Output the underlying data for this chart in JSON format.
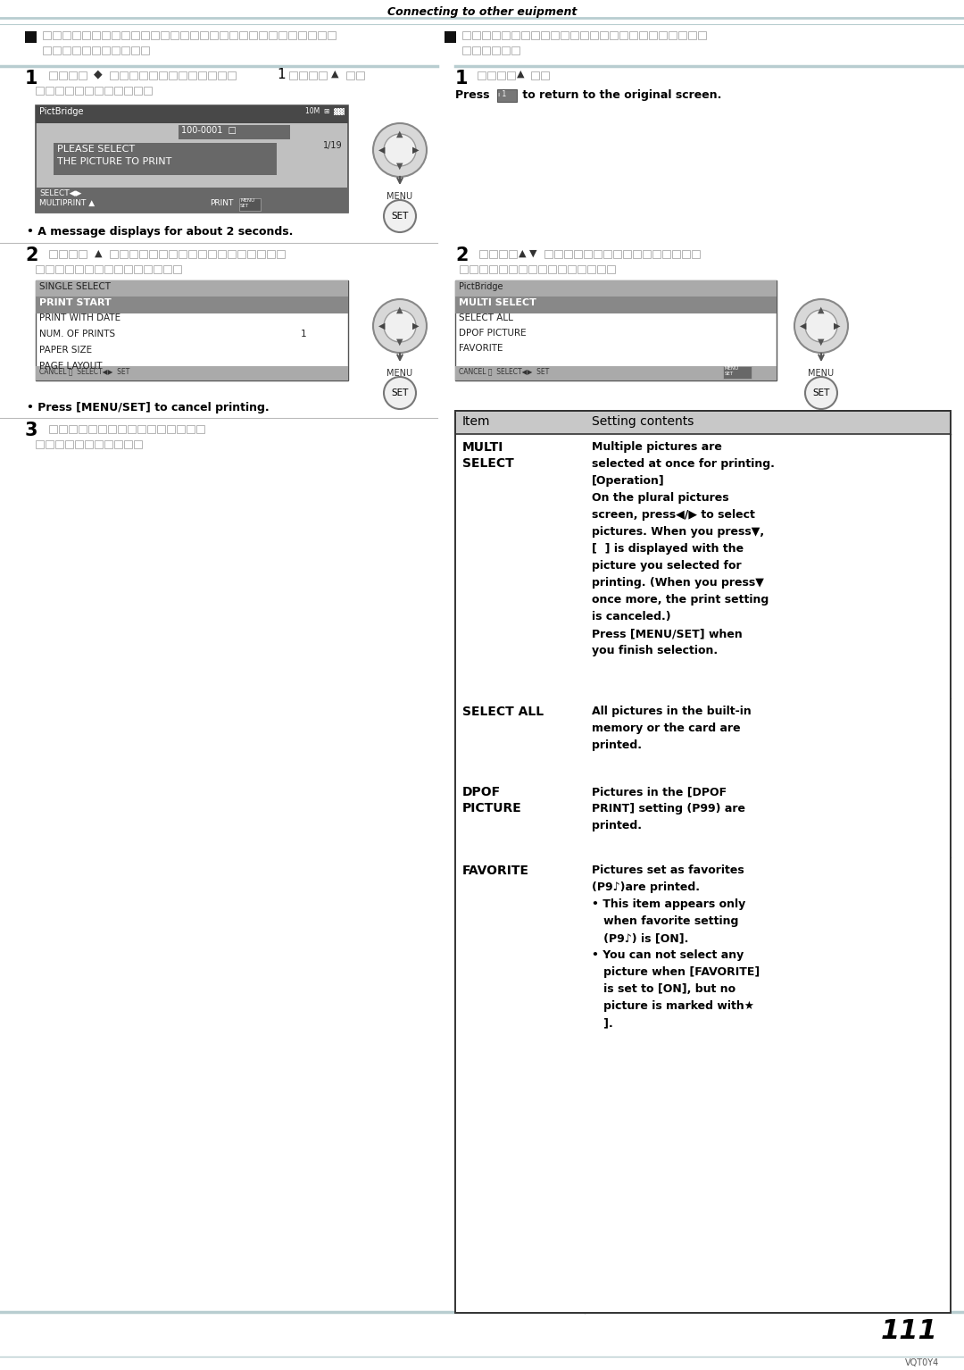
{
  "title": "Connecting to other euipment",
  "page_number": "111",
  "version": "VQT0Y4",
  "bg_color": "#ffffff",
  "line_color": "#b8cdd0",
  "divider_color": "#aaaaaa"
}
